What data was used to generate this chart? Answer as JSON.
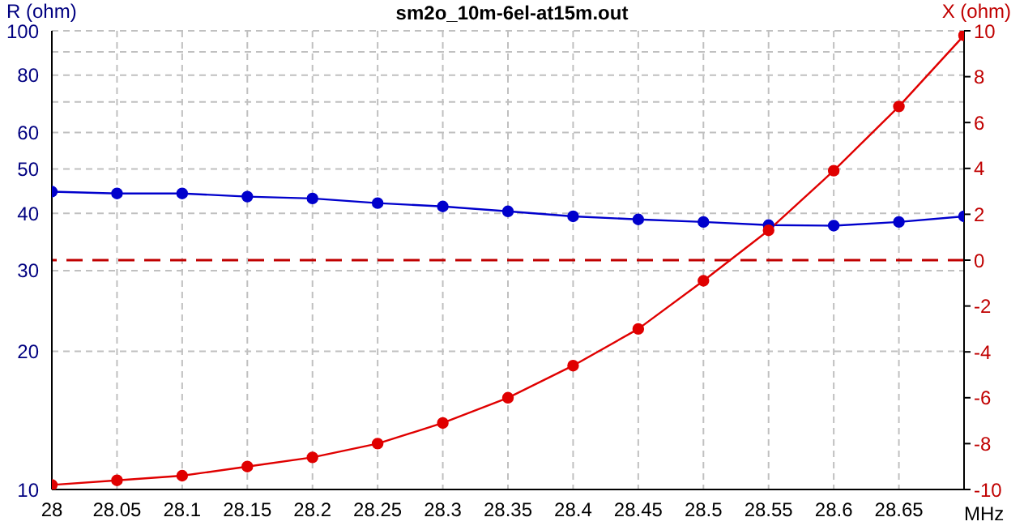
{
  "chart_data": {
    "type": "line",
    "title": "sm2o_10m-6el-at15m.out",
    "xlabel": "MHz",
    "ylabel": "R (ohm)",
    "y2label": "X (ohm)",
    "x": [
      28,
      28.05,
      28.1,
      28.15,
      28.2,
      28.25,
      28.3,
      28.35,
      28.4,
      28.45,
      28.5,
      28.55,
      28.6,
      28.65,
      28.7
    ],
    "series": [
      {
        "color": "#0000cc",
        "values": [
          44.6,
          44.2,
          44.2,
          43.5,
          43.1,
          42.1,
          41.4,
          40.4,
          39.4,
          38.8,
          38.3,
          37.7,
          37.6,
          38.3,
          39.4
        ]
      },
      {
        "color": "#e00000",
        "axis": "y2",
        "values": [
          -9.8,
          -9.6,
          -9.4,
          -9.0,
          -8.6,
          -8.0,
          -7.1,
          -6.0,
          -4.6,
          -3.0,
          -0.9,
          1.3,
          3.9,
          6.7,
          9.8
        ]
      }
    ],
    "xlim": [
      28,
      28.7
    ],
    "xticks": [
      28,
      28.05,
      28.1,
      28.15,
      28.2,
      28.25,
      28.3,
      28.35,
      28.4,
      28.45,
      28.5,
      28.55,
      28.6,
      28.65
    ],
    "ylim": [
      10,
      100
    ],
    "log": "y",
    "yticks": [
      10,
      20,
      30,
      40,
      50,
      60,
      {
        "value": 70,
        "label": null
      },
      80,
      {
        "value": 90,
        "label": null
      },
      100
    ],
    "y2lim": [
      -10,
      10
    ],
    "y2ticks": [
      -10,
      -8,
      -6,
      -4,
      -2,
      0,
      2,
      4,
      6,
      8,
      10
    ],
    "ref_lines": [
      {
        "axis": "y2",
        "value": 0,
        "color": "#c00000",
        "line_style": "dashed"
      }
    ],
    "grid": true,
    "marker": "circle",
    "line_style": "solid"
  }
}
